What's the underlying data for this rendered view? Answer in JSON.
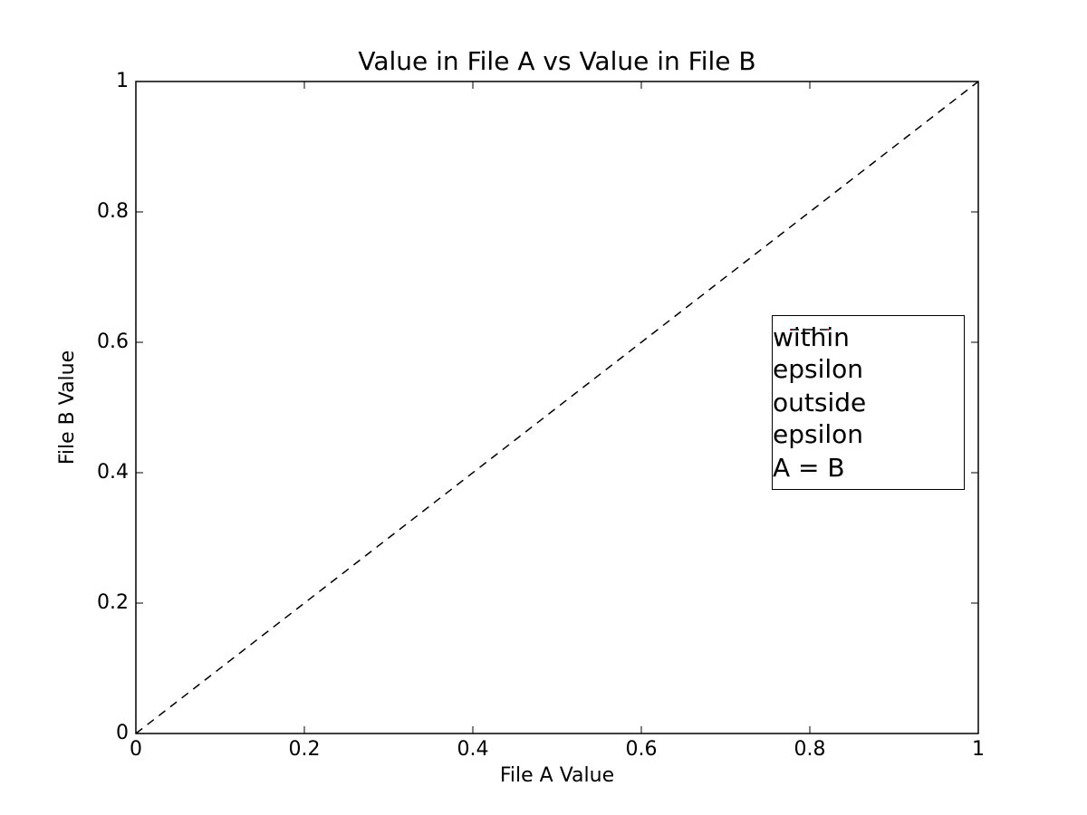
{
  "chart_data": {
    "type": "scatter",
    "title": "Value in File A vs Value in File B",
    "x_label": "File A Value",
    "y_label": "File B Value",
    "xlim": [
      0,
      1
    ],
    "ylim": [
      0,
      1
    ],
    "xticks": [
      0,
      0.2,
      0.4,
      0.6,
      0.8,
      1
    ],
    "yticks": [
      0,
      0.2,
      0.4,
      0.6,
      0.8,
      1
    ],
    "grid": false,
    "legend": "right",
    "series": [
      {
        "name": "within epsilon",
        "type": "scatter",
        "color": "#0000ff",
        "x": [],
        "values": []
      },
      {
        "name": "outside epsilon",
        "type": "scatter",
        "color": "#ff0000",
        "x": [],
        "values": []
      },
      {
        "name": "A = B",
        "type": "line",
        "color": "#000000",
        "dash": "9,7",
        "x": [
          0,
          1
        ],
        "values": [
          0,
          1
        ]
      }
    ]
  }
}
